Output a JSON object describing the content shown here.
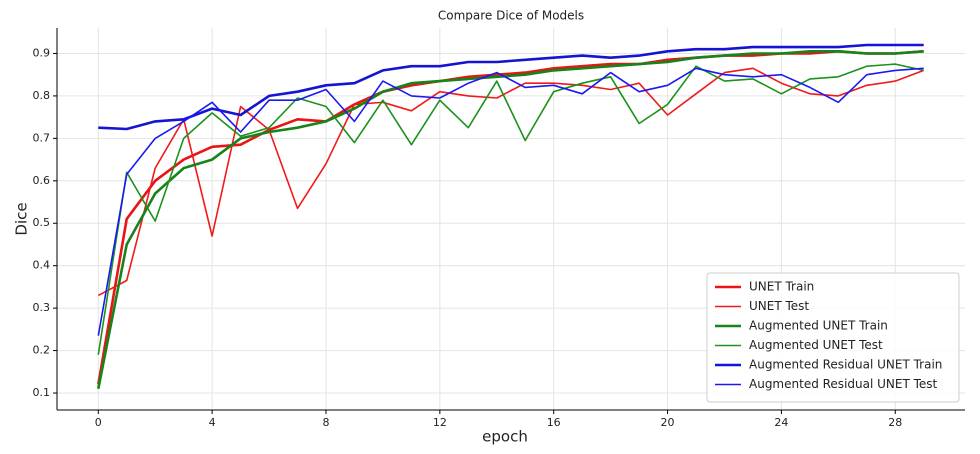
{
  "chart_data": {
    "type": "line",
    "title": "Compare Dice of Models",
    "xlabel": "epoch",
    "ylabel": "Dice",
    "x": [
      0,
      1,
      2,
      3,
      4,
      5,
      6,
      7,
      8,
      9,
      10,
      11,
      12,
      13,
      14,
      15,
      16,
      17,
      18,
      19,
      20,
      21,
      22,
      23,
      24,
      25,
      26,
      27,
      28,
      29
    ],
    "series": [
      {
        "name": "UNET Train",
        "color": "#e81515",
        "linewidth": 2.6,
        "values": [
          0.12,
          0.51,
          0.6,
          0.65,
          0.68,
          0.685,
          0.72,
          0.745,
          0.74,
          0.78,
          0.81,
          0.825,
          0.835,
          0.845,
          0.85,
          0.855,
          0.865,
          0.87,
          0.875,
          0.875,
          0.885,
          0.89,
          0.895,
          0.895,
          0.9,
          0.9,
          0.905,
          0.9,
          0.9,
          0.905
        ]
      },
      {
        "name": "UNET Test",
        "color": "#f01a1a",
        "linewidth": 1.6,
        "values": [
          0.33,
          0.365,
          0.63,
          0.745,
          0.47,
          0.775,
          0.72,
          0.535,
          0.64,
          0.78,
          0.785,
          0.765,
          0.81,
          0.8,
          0.795,
          0.83,
          0.83,
          0.825,
          0.815,
          0.83,
          0.755,
          0.805,
          0.855,
          0.865,
          0.83,
          0.805,
          0.8,
          0.825,
          0.835,
          0.86
        ]
      },
      {
        "name": "Augmented UNET Train",
        "color": "#16841a",
        "linewidth": 2.6,
        "values": [
          0.11,
          0.45,
          0.57,
          0.63,
          0.65,
          0.7,
          0.715,
          0.725,
          0.74,
          0.77,
          0.81,
          0.83,
          0.835,
          0.84,
          0.845,
          0.85,
          0.86,
          0.865,
          0.87,
          0.875,
          0.88,
          0.89,
          0.895,
          0.9,
          0.9,
          0.905,
          0.905,
          0.9,
          0.9,
          0.905
        ]
      },
      {
        "name": "Augmented UNET Test",
        "color": "#1c921c",
        "linewidth": 1.6,
        "values": [
          0.19,
          0.62,
          0.505,
          0.7,
          0.76,
          0.705,
          0.725,
          0.795,
          0.775,
          0.69,
          0.79,
          0.685,
          0.79,
          0.725,
          0.835,
          0.695,
          0.81,
          0.83,
          0.845,
          0.735,
          0.78,
          0.87,
          0.835,
          0.84,
          0.805,
          0.84,
          0.845,
          0.87,
          0.875,
          0.86
        ]
      },
      {
        "name": "Augmented Residual UNET Train",
        "color": "#1414d2",
        "linewidth": 2.6,
        "values": [
          0.725,
          0.722,
          0.74,
          0.745,
          0.77,
          0.755,
          0.8,
          0.81,
          0.825,
          0.83,
          0.86,
          0.87,
          0.87,
          0.88,
          0.88,
          0.885,
          0.89,
          0.895,
          0.89,
          0.895,
          0.905,
          0.91,
          0.91,
          0.915,
          0.915,
          0.915,
          0.915,
          0.92,
          0.92,
          0.92
        ]
      },
      {
        "name": "Augmented Residual UNET Test",
        "color": "#1a1af0",
        "linewidth": 1.6,
        "values": [
          0.235,
          0.615,
          0.7,
          0.74,
          0.785,
          0.715,
          0.79,
          0.79,
          0.815,
          0.74,
          0.835,
          0.8,
          0.795,
          0.83,
          0.855,
          0.82,
          0.825,
          0.805,
          0.855,
          0.81,
          0.825,
          0.865,
          0.85,
          0.845,
          0.85,
          0.82,
          0.785,
          0.85,
          0.86,
          0.865
        ]
      }
    ],
    "xlim": [
      -1.45,
      30.45
    ],
    "xticks": [
      0,
      4,
      8,
      12,
      16,
      20,
      24,
      28
    ],
    "ylim": [
      0.06,
      0.96
    ],
    "yticks": [
      0.1,
      0.2,
      0.3,
      0.4,
      0.5,
      0.6,
      0.7,
      0.8,
      0.9
    ],
    "grid": true,
    "legend": "lower right"
  }
}
